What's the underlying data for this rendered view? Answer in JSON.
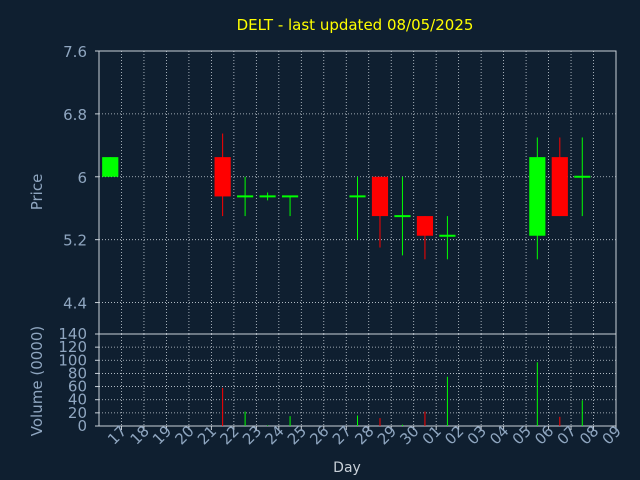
{
  "title": "DELT - last updated 08/05/2025",
  "colors": {
    "background": "#0f1f30",
    "title": "#ffff00",
    "axis_text": "#8fa6c0",
    "grid": "#c8d0d8",
    "frame": "#c8d0d8",
    "up": "#00ff00",
    "down": "#ff0000"
  },
  "chart_data": [
    {
      "type": "candlestick",
      "ylabel": "Price",
      "xlabel": "",
      "ylim": [
        4.0,
        7.6
      ],
      "yticks": [
        4.4,
        5.2,
        6,
        6.8,
        7.6
      ],
      "ytick_labels": [
        "4.4",
        "5.2",
        "6",
        "6.8",
        "7.6"
      ],
      "grid": true,
      "candles": [
        {
          "day": "17",
          "open": 6.0,
          "high": 6.25,
          "low": 6.0,
          "close": 6.25
        },
        {
          "day": "22",
          "open": 6.25,
          "high": 6.55,
          "low": 5.5,
          "close": 5.75
        },
        {
          "day": "23",
          "open": 5.75,
          "high": 6.0,
          "low": 5.5,
          "close": 5.75
        },
        {
          "day": "24",
          "open": 5.75,
          "high": 5.8,
          "low": 5.7,
          "close": 5.75
        },
        {
          "day": "25",
          "open": 5.75,
          "high": 5.75,
          "low": 5.5,
          "close": 5.75
        },
        {
          "day": "28",
          "open": 5.75,
          "high": 6.0,
          "low": 5.2,
          "close": 5.75
        },
        {
          "day": "29",
          "open": 6.0,
          "high": 6.0,
          "low": 5.1,
          "close": 5.5
        },
        {
          "day": "30",
          "open": 5.5,
          "high": 6.0,
          "low": 5.0,
          "close": 5.5
        },
        {
          "day": "01",
          "open": 5.5,
          "high": 5.5,
          "low": 4.95,
          "close": 5.25
        },
        {
          "day": "02",
          "open": 5.25,
          "high": 5.5,
          "low": 4.95,
          "close": 5.25
        },
        {
          "day": "06",
          "open": 5.25,
          "high": 6.5,
          "low": 4.95,
          "close": 6.25
        },
        {
          "day": "07",
          "open": 6.25,
          "high": 6.5,
          "low": 5.5,
          "close": 5.5
        },
        {
          "day": "08",
          "open": 6.0,
          "high": 6.5,
          "low": 5.5,
          "close": 6.0
        }
      ]
    },
    {
      "type": "bar",
      "ylabel": "Volume (0000)",
      "xlabel": "Day",
      "ylim": [
        0,
        140
      ],
      "yticks": [
        0,
        20,
        40,
        60,
        80,
        100,
        120,
        140
      ],
      "ytick_labels": [
        "0",
        "20",
        "40",
        "60",
        "80",
        "100",
        "120",
        "140"
      ],
      "grid": true,
      "categories": [
        "17",
        "18",
        "19",
        "20",
        "21",
        "22",
        "23",
        "24",
        "25",
        "26",
        "27",
        "28",
        "29",
        "30",
        "01",
        "02",
        "03",
        "04",
        "05",
        "06",
        "07",
        "08",
        "09"
      ],
      "values": [
        0,
        0,
        0,
        0,
        0,
        58,
        22,
        1,
        15,
        0,
        0,
        16,
        12,
        2,
        22,
        75,
        0,
        0,
        0,
        97,
        14,
        39,
        0
      ],
      "direction": [
        "up",
        "up",
        "up",
        "up",
        "up",
        "down",
        "up",
        "up",
        "up",
        "up",
        "up",
        "up",
        "down",
        "up",
        "down",
        "up",
        "up",
        "up",
        "up",
        "up",
        "down",
        "up",
        "up"
      ]
    }
  ]
}
